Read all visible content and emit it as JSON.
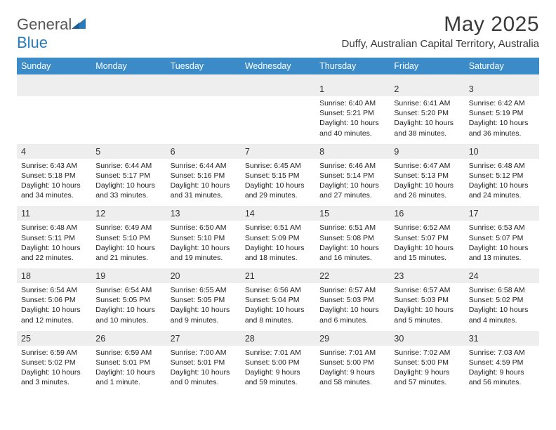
{
  "brand": {
    "part1": "General",
    "part2": "Blue"
  },
  "title": "May 2025",
  "location": "Duffy, Australian Capital Territory, Australia",
  "colors": {
    "header_bg": "#3b8bc9",
    "header_text": "#ffffff",
    "numrow_bg": "#eeeeee",
    "page_bg": "#ffffff",
    "text": "#222222",
    "brand_blue": "#2a7ab9",
    "brand_gray": "#555555"
  },
  "dow": [
    "Sunday",
    "Monday",
    "Tuesday",
    "Wednesday",
    "Thursday",
    "Friday",
    "Saturday"
  ],
  "weeks": [
    {
      "nums": [
        "",
        "",
        "",
        "",
        "1",
        "2",
        "3"
      ],
      "cells": [
        null,
        null,
        null,
        null,
        {
          "sunrise": "Sunrise: 6:40 AM",
          "sunset": "Sunset: 5:21 PM",
          "day1": "Daylight: 10 hours",
          "day2": "and 40 minutes."
        },
        {
          "sunrise": "Sunrise: 6:41 AM",
          "sunset": "Sunset: 5:20 PM",
          "day1": "Daylight: 10 hours",
          "day2": "and 38 minutes."
        },
        {
          "sunrise": "Sunrise: 6:42 AM",
          "sunset": "Sunset: 5:19 PM",
          "day1": "Daylight: 10 hours",
          "day2": "and 36 minutes."
        }
      ]
    },
    {
      "nums": [
        "4",
        "5",
        "6",
        "7",
        "8",
        "9",
        "10"
      ],
      "cells": [
        {
          "sunrise": "Sunrise: 6:43 AM",
          "sunset": "Sunset: 5:18 PM",
          "day1": "Daylight: 10 hours",
          "day2": "and 34 minutes."
        },
        {
          "sunrise": "Sunrise: 6:44 AM",
          "sunset": "Sunset: 5:17 PM",
          "day1": "Daylight: 10 hours",
          "day2": "and 33 minutes."
        },
        {
          "sunrise": "Sunrise: 6:44 AM",
          "sunset": "Sunset: 5:16 PM",
          "day1": "Daylight: 10 hours",
          "day2": "and 31 minutes."
        },
        {
          "sunrise": "Sunrise: 6:45 AM",
          "sunset": "Sunset: 5:15 PM",
          "day1": "Daylight: 10 hours",
          "day2": "and 29 minutes."
        },
        {
          "sunrise": "Sunrise: 6:46 AM",
          "sunset": "Sunset: 5:14 PM",
          "day1": "Daylight: 10 hours",
          "day2": "and 27 minutes."
        },
        {
          "sunrise": "Sunrise: 6:47 AM",
          "sunset": "Sunset: 5:13 PM",
          "day1": "Daylight: 10 hours",
          "day2": "and 26 minutes."
        },
        {
          "sunrise": "Sunrise: 6:48 AM",
          "sunset": "Sunset: 5:12 PM",
          "day1": "Daylight: 10 hours",
          "day2": "and 24 minutes."
        }
      ]
    },
    {
      "nums": [
        "11",
        "12",
        "13",
        "14",
        "15",
        "16",
        "17"
      ],
      "cells": [
        {
          "sunrise": "Sunrise: 6:48 AM",
          "sunset": "Sunset: 5:11 PM",
          "day1": "Daylight: 10 hours",
          "day2": "and 22 minutes."
        },
        {
          "sunrise": "Sunrise: 6:49 AM",
          "sunset": "Sunset: 5:10 PM",
          "day1": "Daylight: 10 hours",
          "day2": "and 21 minutes."
        },
        {
          "sunrise": "Sunrise: 6:50 AM",
          "sunset": "Sunset: 5:10 PM",
          "day1": "Daylight: 10 hours",
          "day2": "and 19 minutes."
        },
        {
          "sunrise": "Sunrise: 6:51 AM",
          "sunset": "Sunset: 5:09 PM",
          "day1": "Daylight: 10 hours",
          "day2": "and 18 minutes."
        },
        {
          "sunrise": "Sunrise: 6:51 AM",
          "sunset": "Sunset: 5:08 PM",
          "day1": "Daylight: 10 hours",
          "day2": "and 16 minutes."
        },
        {
          "sunrise": "Sunrise: 6:52 AM",
          "sunset": "Sunset: 5:07 PM",
          "day1": "Daylight: 10 hours",
          "day2": "and 15 minutes."
        },
        {
          "sunrise": "Sunrise: 6:53 AM",
          "sunset": "Sunset: 5:07 PM",
          "day1": "Daylight: 10 hours",
          "day2": "and 13 minutes."
        }
      ]
    },
    {
      "nums": [
        "18",
        "19",
        "20",
        "21",
        "22",
        "23",
        "24"
      ],
      "cells": [
        {
          "sunrise": "Sunrise: 6:54 AM",
          "sunset": "Sunset: 5:06 PM",
          "day1": "Daylight: 10 hours",
          "day2": "and 12 minutes."
        },
        {
          "sunrise": "Sunrise: 6:54 AM",
          "sunset": "Sunset: 5:05 PM",
          "day1": "Daylight: 10 hours",
          "day2": "and 10 minutes."
        },
        {
          "sunrise": "Sunrise: 6:55 AM",
          "sunset": "Sunset: 5:05 PM",
          "day1": "Daylight: 10 hours",
          "day2": "and 9 minutes."
        },
        {
          "sunrise": "Sunrise: 6:56 AM",
          "sunset": "Sunset: 5:04 PM",
          "day1": "Daylight: 10 hours",
          "day2": "and 8 minutes."
        },
        {
          "sunrise": "Sunrise: 6:57 AM",
          "sunset": "Sunset: 5:03 PM",
          "day1": "Daylight: 10 hours",
          "day2": "and 6 minutes."
        },
        {
          "sunrise": "Sunrise: 6:57 AM",
          "sunset": "Sunset: 5:03 PM",
          "day1": "Daylight: 10 hours",
          "day2": "and 5 minutes."
        },
        {
          "sunrise": "Sunrise: 6:58 AM",
          "sunset": "Sunset: 5:02 PM",
          "day1": "Daylight: 10 hours",
          "day2": "and 4 minutes."
        }
      ]
    },
    {
      "nums": [
        "25",
        "26",
        "27",
        "28",
        "29",
        "30",
        "31"
      ],
      "cells": [
        {
          "sunrise": "Sunrise: 6:59 AM",
          "sunset": "Sunset: 5:02 PM",
          "day1": "Daylight: 10 hours",
          "day2": "and 3 minutes."
        },
        {
          "sunrise": "Sunrise: 6:59 AM",
          "sunset": "Sunset: 5:01 PM",
          "day1": "Daylight: 10 hours",
          "day2": "and 1 minute."
        },
        {
          "sunrise": "Sunrise: 7:00 AM",
          "sunset": "Sunset: 5:01 PM",
          "day1": "Daylight: 10 hours",
          "day2": "and 0 minutes."
        },
        {
          "sunrise": "Sunrise: 7:01 AM",
          "sunset": "Sunset: 5:00 PM",
          "day1": "Daylight: 9 hours",
          "day2": "and 59 minutes."
        },
        {
          "sunrise": "Sunrise: 7:01 AM",
          "sunset": "Sunset: 5:00 PM",
          "day1": "Daylight: 9 hours",
          "day2": "and 58 minutes."
        },
        {
          "sunrise": "Sunrise: 7:02 AM",
          "sunset": "Sunset: 5:00 PM",
          "day1": "Daylight: 9 hours",
          "day2": "and 57 minutes."
        },
        {
          "sunrise": "Sunrise: 7:03 AM",
          "sunset": "Sunset: 4:59 PM",
          "day1": "Daylight: 9 hours",
          "day2": "and 56 minutes."
        }
      ]
    }
  ]
}
